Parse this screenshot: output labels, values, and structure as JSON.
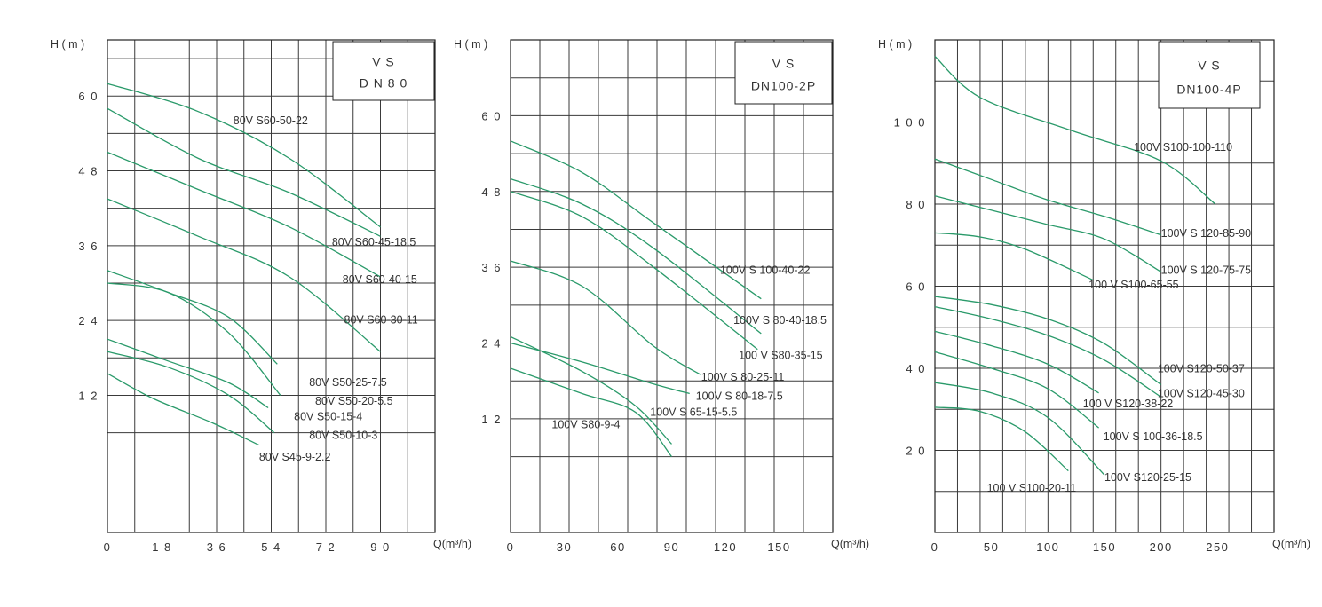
{
  "chart_data": [
    {
      "type": "line",
      "ylabel": "H ( m )",
      "xlabel": "Q(m³/h)",
      "box_lines": [
        "V S",
        "D N 8 0"
      ],
      "xlim": [
        0,
        108
      ],
      "ylim": [
        -10,
        69
      ],
      "x_ticks": [
        0,
        18,
        36,
        54,
        72,
        90
      ],
      "x_tick_labels": [
        "0",
        "1 8",
        "3 6",
        "5 4",
        "7 2",
        "9 0"
      ],
      "y_ticks": [
        12,
        24,
        36,
        48,
        60
      ],
      "y_tick_labels": [
        "1 2",
        "2 4",
        "3 6",
        "4 8",
        "6 0"
      ],
      "series": [
        {
          "name": "80V S60-50-22",
          "x": [
            0,
            30,
            60,
            90
          ],
          "y": [
            62.0,
            57.5,
            50.0,
            39.0
          ]
        },
        {
          "name": "80V S60-45-18.5",
          "x": [
            0,
            30,
            60,
            90
          ],
          "y": [
            58.0,
            50.0,
            44.5,
            37.5
          ]
        },
        {
          "name": "80V S60-40-15",
          "x": [
            0,
            30,
            60,
            90
          ],
          "y": [
            51.0,
            45.0,
            39.0,
            31.0
          ]
        },
        {
          "name": "80V S60-30-11",
          "x": [
            0,
            30,
            60,
            90
          ],
          "y": [
            43.5,
            37.5,
            31.0,
            19.0
          ]
        },
        {
          "name": "80V S50-25-7.5",
          "x": [
            0,
            20,
            40,
            56
          ],
          "y": [
            32.0,
            28.5,
            24.5,
            17.0
          ]
        },
        {
          "name": "80V S50-20-5.5",
          "x": [
            0,
            20,
            40,
            57
          ],
          "y": [
            30.0,
            28.5,
            22.0,
            12.0
          ]
        },
        {
          "name": "80V S50-15-4",
          "x": [
            0,
            20,
            40,
            53
          ],
          "y": [
            21.0,
            17.5,
            14.0,
            10.0
          ]
        },
        {
          "name": "80V S50-10-3",
          "x": [
            0,
            20,
            40,
            55
          ],
          "y": [
            19.0,
            16.5,
            12.0,
            6.0
          ]
        },
        {
          "name": "80V S45-9-2.2",
          "x": [
            0,
            15,
            35,
            50
          ],
          "y": [
            15.5,
            11.5,
            7.5,
            4.0
          ]
        }
      ],
      "labels": [
        {
          "text": "80V S60-50-22",
          "x": 41.5,
          "y": 55.5
        },
        {
          "text": "80V S60-45-18.5",
          "x": 74.0,
          "y": 36.0
        },
        {
          "text": "80V S60-40-15",
          "x": 77.5,
          "y": 30.0
        },
        {
          "text": "80V S60-30-11",
          "x": 78.0,
          "y": 23.5
        },
        {
          "text": "80V S50-25-7.5",
          "x": 66.5,
          "y": 13.5
        },
        {
          "text": "80V S50-20-5.5",
          "x": 68.5,
          "y": 10.5
        },
        {
          "text": "80V S50-15-4",
          "x": 61.5,
          "y": 8.0
        },
        {
          "text": "80V S50-10-3",
          "x": 66.5,
          "y": 5.0
        },
        {
          "text": "80V S45-9-2.2",
          "x": 50.0,
          "y": 1.5
        }
      ]
    },
    {
      "type": "line",
      "ylabel": "H ( m )",
      "xlabel": "Q(m³/h)",
      "box_lines": [
        "V S",
        "DN100-2P"
      ],
      "xlim": [
        0,
        180
      ],
      "ylim": [
        -6,
        72
      ],
      "x_ticks": [
        0,
        30,
        60,
        90,
        120,
        150
      ],
      "x_tick_labels": [
        "0",
        "30",
        "60",
        "90",
        "120",
        "150"
      ],
      "y_ticks": [
        12,
        24,
        36,
        48,
        60
      ],
      "y_tick_labels": [
        "1 2",
        "2 4",
        "3 6",
        "4 8",
        "6 0"
      ],
      "series": [
        {
          "name": "100V S 100-40-22",
          "x": [
            0,
            40,
            80,
            140
          ],
          "y": [
            56.0,
            51.0,
            43.0,
            31.0
          ]
        },
        {
          "name": "100V S 80-40-18.5",
          "x": [
            0,
            40,
            80,
            140
          ],
          "y": [
            50.0,
            46.0,
            39.0,
            25.5
          ]
        },
        {
          "name": "100 V S80-35-15",
          "x": [
            0,
            40,
            80,
            138
          ],
          "y": [
            48.0,
            44.0,
            36.0,
            23.0
          ]
        },
        {
          "name": "100V S 80-25-11",
          "x": [
            0,
            40,
            80,
            106
          ],
          "y": [
            37.0,
            33.0,
            23.5,
            19.0
          ]
        },
        {
          "name": "100V S 80-18-7.5",
          "x": [
            0,
            40,
            80,
            100
          ],
          "y": [
            24.0,
            21.0,
            17.5,
            16.0
          ]
        },
        {
          "name": "100V S 65-15-5.5",
          "x": [
            0,
            40,
            70,
            90
          ],
          "y": [
            25.0,
            19.5,
            14.0,
            8.0
          ]
        },
        {
          "name": "100V S80-9-4",
          "x": [
            0,
            40,
            70,
            90
          ],
          "y": [
            20.0,
            16.0,
            13.0,
            6.0
          ]
        }
      ],
      "labels": [
        {
          "text": "100V S 100-40-22",
          "x": 117.0,
          "y": 35.0
        },
        {
          "text": "100V S 80-40-18.5",
          "x": 124.5,
          "y": 27.0
        },
        {
          "text": "100 V S80-35-15",
          "x": 127.5,
          "y": 21.5
        },
        {
          "text": "100V S 80-25-11",
          "x": 106.5,
          "y": 18.0
        },
        {
          "text": "100V S 80-18-7.5",
          "x": 103.5,
          "y": 15.0
        },
        {
          "text": "100V S 65-15-5.5",
          "x": 78.0,
          "y": 12.5
        },
        {
          "text": "100V S80-9-4",
          "x": 23.0,
          "y": 10.5
        }
      ]
    },
    {
      "type": "line",
      "ylabel": "H ( m )",
      "xlabel": "Q(m³/h)",
      "box_lines": [
        "V S",
        "DN100-4P"
      ],
      "xlim": [
        0,
        300
      ],
      "ylim": [
        0,
        120
      ],
      "x_ticks": [
        0,
        50,
        100,
        150,
        200,
        250
      ],
      "x_tick_labels": [
        "0",
        "50",
        "100",
        "150",
        "200",
        "250"
      ],
      "y_ticks": [
        20,
        40,
        60,
        80,
        100
      ],
      "y_tick_labels": [
        "2 0",
        "4 0",
        "6 0",
        "8 0",
        "1 0 0"
      ],
      "series": [
        {
          "name": "100V S100-100-110",
          "x": [
            0,
            40,
            120,
            200,
            248
          ],
          "y": [
            116.0,
            106.0,
            98.0,
            90.5,
            80.0
          ]
        },
        {
          "name": "100V S 120-85-90",
          "x": [
            0,
            50,
            100,
            150,
            200
          ],
          "y": [
            91.0,
            86.0,
            81.0,
            77.0,
            72.5
          ]
        },
        {
          "name": "100V S 120-75-75",
          "x": [
            0,
            50,
            100,
            150,
            200
          ],
          "y": [
            82.0,
            78.5,
            75.0,
            71.5,
            63.5
          ]
        },
        {
          "name": "100 V S100-65-55",
          "x": [
            0,
            40,
            80,
            140
          ],
          "y": [
            73.0,
            72.0,
            69.0,
            61.5
          ]
        },
        {
          "name": "100V S120-50-37",
          "x": [
            0,
            50,
            100,
            150,
            200
          ],
          "y": [
            57.5,
            55.5,
            52.0,
            46.0,
            36.0
          ]
        },
        {
          "name": "100V S120-45-30",
          "x": [
            0,
            50,
            100,
            150,
            200
          ],
          "y": [
            55.0,
            52.0,
            48.0,
            42.0,
            33.0
          ]
        },
        {
          "name": "100 V S120-38-22",
          "x": [
            0,
            50,
            100,
            145
          ],
          "y": [
            49.0,
            45.5,
            41.0,
            34.0
          ]
        },
        {
          "name": "100V S 100-36-18.5",
          "x": [
            0,
            50,
            100,
            145
          ],
          "y": [
            44.0,
            40.0,
            35.0,
            25.5
          ]
        },
        {
          "name": "100V S120-25-15",
          "x": [
            0,
            50,
            100,
            150
          ],
          "y": [
            36.5,
            34.0,
            28.0,
            14.0
          ]
        },
        {
          "name": "100 V S100-20-11",
          "x": [
            0,
            40,
            80,
            118
          ],
          "y": [
            30.5,
            29.5,
            24.5,
            15.0
          ]
        }
      ],
      "labels": [
        {
          "text": "100V S100-100-110",
          "x": 176.0,
          "y": 93.0
        },
        {
          "text": "100V S 120-85-90",
          "x": 200.0,
          "y": 72.0
        },
        {
          "text": "100V S 120-75-75",
          "x": 200.0,
          "y": 63.0
        },
        {
          "text": "100 V S100-65-55",
          "x": 136.0,
          "y": 59.5
        },
        {
          "text": "100V S120-50-37",
          "x": 197.0,
          "y": 39.0
        },
        {
          "text": "100V S120-45-30",
          "x": 197.0,
          "y": 33.0
        },
        {
          "text": "100 V S120-38-22",
          "x": 131.0,
          "y": 30.5
        },
        {
          "text": "100V S 100-36-18.5",
          "x": 149.0,
          "y": 22.5
        },
        {
          "text": "100V S120-25-15",
          "x": 150.0,
          "y": 12.5
        },
        {
          "text": "100 V S100-20-11",
          "x": 46.0,
          "y": 10.0
        }
      ]
    }
  ]
}
